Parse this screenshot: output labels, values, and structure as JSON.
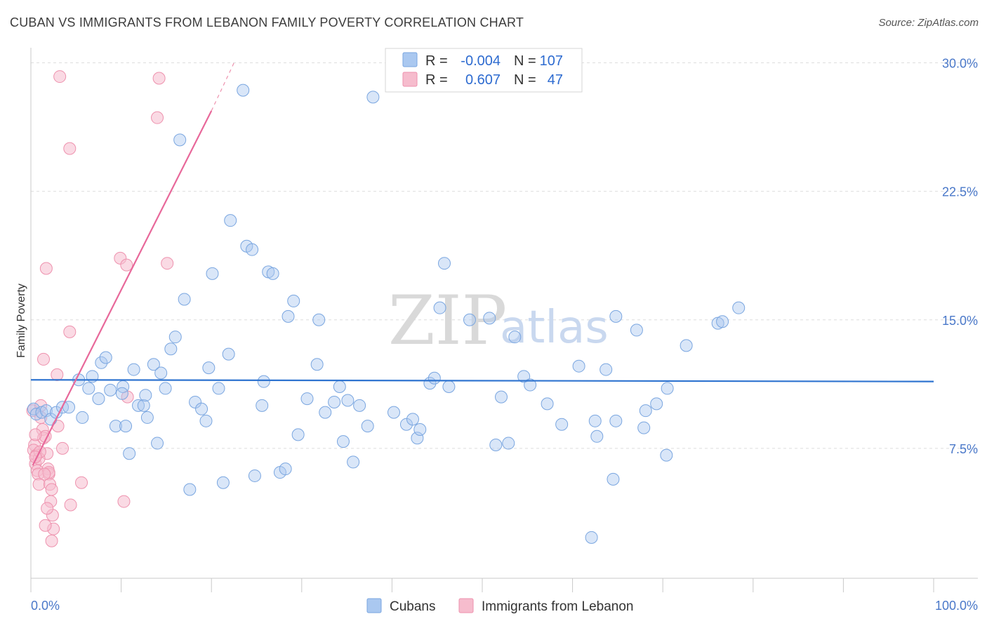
{
  "header": {
    "title": "CUBAN VS IMMIGRANTS FROM LEBANON FAMILY POVERTY CORRELATION CHART",
    "source": "Source: ZipAtlas.com"
  },
  "watermark": {
    "zip": "ZIP",
    "atlas": "atlas"
  },
  "colors": {
    "blue_fill": "#aac8f0",
    "blue_stroke": "#7aa6e0",
    "blue_line": "#2f74d0",
    "pink_fill": "#f6bccd",
    "pink_stroke": "#ee92ae",
    "pink_line": "#e8689a",
    "tick_text": "#4a78c9",
    "grid": "#dddddd"
  },
  "legend": {
    "rows": [
      {
        "r_label": "R =",
        "r_value": "-0.004",
        "n_label": "N =",
        "n_value": "107"
      },
      {
        "r_label": "R =",
        "r_value": "0.607",
        "n_label": "N =",
        "n_value": "47"
      }
    ]
  },
  "bottom_legend": {
    "series1": "Cubans",
    "series2": "Immigrants from Lebanon"
  },
  "chart_data": {
    "type": "scatter",
    "title": "CUBAN VS IMMIGRANTS FROM LEBANON FAMILY POVERTY CORRELATION CHART",
    "xlabel": "",
    "ylabel": "Family Poverty",
    "xlim": [
      0,
      100
    ],
    "ylim": [
      0,
      30.8
    ],
    "y_ticks": [
      7.5,
      15.0,
      22.5,
      30.0
    ],
    "y_tick_labels": [
      "7.5%",
      "15.0%",
      "22.5%",
      "30.0%"
    ],
    "x_tick_labels": [
      "0.0%",
      "100.0%"
    ],
    "grid": true,
    "legend_position": "top-center",
    "series": [
      {
        "name": "Cubans",
        "R": -0.004,
        "N": 107,
        "trend": {
          "x": [
            0,
            100
          ],
          "y": [
            11.5,
            11.4
          ]
        },
        "points": [
          [
            0.3,
            9.8
          ],
          [
            0.6,
            9.5
          ],
          [
            1.2,
            9.6
          ],
          [
            1.7,
            9.7
          ],
          [
            2.2,
            9.2
          ],
          [
            2.8,
            9.6
          ],
          [
            3.5,
            9.9
          ],
          [
            4.2,
            9.9
          ],
          [
            5.3,
            11.5
          ],
          [
            5.7,
            9.3
          ],
          [
            6.4,
            11.0
          ],
          [
            6.8,
            11.7
          ],
          [
            7.5,
            10.4
          ],
          [
            7.8,
            12.5
          ],
          [
            8.3,
            12.8
          ],
          [
            8.8,
            10.9
          ],
          [
            9.4,
            8.8
          ],
          [
            10.2,
            11.1
          ],
          [
            10.1,
            10.7
          ],
          [
            10.5,
            8.8
          ],
          [
            10.9,
            7.2
          ],
          [
            11.4,
            12.1
          ],
          [
            11.9,
            10.0
          ],
          [
            12.5,
            10.0
          ],
          [
            12.9,
            9.3
          ],
          [
            12.7,
            10.6
          ],
          [
            13.6,
            12.4
          ],
          [
            14.0,
            7.8
          ],
          [
            14.4,
            11.9
          ],
          [
            14.9,
            11.0
          ],
          [
            15.5,
            13.3
          ],
          [
            16.0,
            14.0
          ],
          [
            16.5,
            25.5
          ],
          [
            17.0,
            16.2
          ],
          [
            17.6,
            5.1
          ],
          [
            18.2,
            10.2
          ],
          [
            18.9,
            9.8
          ],
          [
            19.4,
            9.1
          ],
          [
            19.7,
            12.2
          ],
          [
            20.1,
            17.7
          ],
          [
            20.8,
            11.0
          ],
          [
            21.3,
            5.5
          ],
          [
            21.9,
            13.0
          ],
          [
            22.1,
            20.8
          ],
          [
            23.5,
            28.4
          ],
          [
            23.9,
            19.3
          ],
          [
            24.5,
            19.1
          ],
          [
            24.8,
            5.9
          ],
          [
            25.6,
            10.0
          ],
          [
            25.8,
            11.4
          ],
          [
            26.3,
            17.8
          ],
          [
            26.8,
            17.7
          ],
          [
            27.6,
            6.1
          ],
          [
            28.2,
            6.3
          ],
          [
            28.5,
            15.2
          ],
          [
            29.1,
            16.1
          ],
          [
            29.6,
            8.3
          ],
          [
            30.6,
            10.4
          ],
          [
            31.7,
            12.4
          ],
          [
            31.9,
            15.0
          ],
          [
            32.6,
            9.6
          ],
          [
            33.6,
            10.2
          ],
          [
            34.2,
            11.1
          ],
          [
            34.6,
            7.9
          ],
          [
            35.1,
            10.3
          ],
          [
            35.7,
            6.7
          ],
          [
            36.4,
            10.0
          ],
          [
            37.3,
            8.8
          ],
          [
            37.9,
            28.0
          ],
          [
            40.2,
            9.6
          ],
          [
            41.6,
            8.9
          ],
          [
            42.3,
            9.2
          ],
          [
            42.8,
            8.1
          ],
          [
            43.1,
            8.6
          ],
          [
            44.2,
            11.3
          ],
          [
            44.7,
            11.6
          ],
          [
            45.3,
            15.7
          ],
          [
            45.8,
            18.3
          ],
          [
            46.3,
            11.1
          ],
          [
            48.6,
            15.0
          ],
          [
            50.8,
            15.1
          ],
          [
            51.5,
            7.7
          ],
          [
            52.1,
            10.5
          ],
          [
            52.9,
            7.8
          ],
          [
            53.6,
            14.0
          ],
          [
            54.6,
            11.7
          ],
          [
            55.3,
            11.2
          ],
          [
            57.2,
            10.1
          ],
          [
            58.8,
            8.9
          ],
          [
            60.7,
            12.3
          ],
          [
            62.5,
            9.1
          ],
          [
            62.7,
            8.2
          ],
          [
            63.7,
            12.1
          ],
          [
            64.5,
            5.7
          ],
          [
            64.8,
            9.1
          ],
          [
            67.1,
            14.4
          ],
          [
            67.9,
            8.7
          ],
          [
            68.1,
            9.7
          ],
          [
            69.3,
            10.1
          ],
          [
            70.4,
            7.1
          ],
          [
            70.5,
            11.0
          ],
          [
            72.6,
            13.5
          ],
          [
            76.1,
            14.8
          ],
          [
            76.6,
            14.9
          ],
          [
            78.4,
            15.7
          ],
          [
            64.8,
            15.2
          ],
          [
            62.1,
            2.3
          ]
        ]
      },
      {
        "name": "Immigrants from Lebanon",
        "R": 0.607,
        "N": 47,
        "trend": {
          "x": [
            0.2,
            20.0
          ],
          "y": [
            6.5,
            27.2
          ]
        },
        "trend_dashed": {
          "x": [
            20.0,
            22.5
          ],
          "y": [
            27.2,
            30.0
          ]
        },
        "points": [
          [
            0.2,
            9.7
          ],
          [
            0.4,
            7.7
          ],
          [
            0.3,
            7.4
          ],
          [
            0.5,
            6.6
          ],
          [
            0.6,
            7.1
          ],
          [
            0.7,
            6.2
          ],
          [
            0.8,
            6.0
          ],
          [
            0.9,
            5.4
          ],
          [
            1.1,
            9.3
          ],
          [
            1.3,
            8.6
          ],
          [
            1.4,
            8.1
          ],
          [
            1.6,
            8.2
          ],
          [
            1.8,
            7.2
          ],
          [
            1.9,
            6.3
          ],
          [
            2.0,
            6.0
          ],
          [
            2.1,
            5.4
          ],
          [
            2.2,
            4.4
          ],
          [
            2.3,
            5.1
          ],
          [
            2.4,
            3.6
          ],
          [
            2.5,
            2.8
          ],
          [
            2.3,
            2.1
          ],
          [
            1.4,
            12.7
          ],
          [
            1.7,
            18.0
          ],
          [
            1.8,
            4.0
          ],
          [
            1.6,
            3.0
          ],
          [
            2.0,
            6.1
          ],
          [
            1.1,
            10.0
          ],
          [
            0.9,
            6.9
          ],
          [
            0.5,
            8.3
          ],
          [
            1.0,
            7.3
          ],
          [
            1.5,
            6.0
          ],
          [
            2.9,
            11.8
          ],
          [
            3.0,
            8.8
          ],
          [
            3.5,
            7.5
          ],
          [
            3.2,
            29.2
          ],
          [
            4.3,
            25.0
          ],
          [
            4.3,
            14.3
          ],
          [
            4.4,
            4.2
          ],
          [
            5.6,
            5.5
          ],
          [
            9.9,
            18.6
          ],
          [
            10.3,
            4.4
          ],
          [
            10.6,
            18.2
          ],
          [
            10.7,
            10.5
          ],
          [
            14.0,
            26.8
          ],
          [
            14.2,
            29.1
          ],
          [
            15.1,
            18.3
          ],
          [
            0.5,
            7.0
          ]
        ]
      }
    ]
  }
}
